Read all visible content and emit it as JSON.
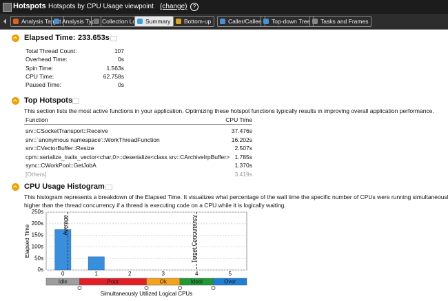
{
  "header": {
    "title": "Hotspots",
    "viewpoint": "Hotspots by CPU Usage viewpoint",
    "change": "(change)",
    "help": "?"
  },
  "toolbar": {
    "tabs": [
      "Analysis Target",
      "Analysis Type",
      "Collection Log",
      "Summary",
      "Bottom-up",
      "Caller/Callee",
      "Top-down Tree",
      "Tasks and Frames"
    ],
    "selected": "Summary"
  },
  "summary": {
    "title": "Elapsed Time:",
    "value": "233.653s",
    "rows": [
      [
        "Total Thread Count:",
        "107"
      ],
      [
        "Overhead Time:",
        "0s"
      ],
      [
        "Spin Time:",
        "1.563s"
      ],
      [
        "CPU Time:",
        "62.758s"
      ],
      [
        "Paused Time:",
        "0s"
      ]
    ]
  },
  "top_hotspots": {
    "title": "Top Hotspots",
    "description": "This section lists the most active functions in your application. Optimizing these hotspot functions typically results in improving overall application performance.",
    "columns": [
      "Function",
      "CPU Time"
    ],
    "rows": [
      [
        "srv::CSocketTransport::Receive",
        "37.476s"
      ],
      [
        "srv::`anonymous namespace'::WorkThreadFunction",
        "16.202s"
      ],
      [
        "srv::CVectorBuffer::Resize",
        "2.507s"
      ],
      [
        "cpm::serialize_traits_vector<char,0>::deserialize<class srv::CArchiveIrpBuffer>",
        "1.785s"
      ],
      [
        "sync::CWorkPool::GetJobA",
        "1.370s"
      ]
    ],
    "others": [
      "[Others]",
      "3.419s"
    ]
  },
  "chart_data": {
    "type": "bar",
    "title": "CPU Usage Histogram",
    "subtitle": [
      "This histogram represents a breakdown of the Elapsed Time. It visualizes what percentage of the wall time the specific number of CPUs were running simultaneously. CPU Usage may be",
      "higher than the thread concurrency if a thread is executing code on a CPU while it is logically waiting."
    ],
    "x": [
      0,
      1,
      2,
      3,
      4,
      5
    ],
    "values": [
      175,
      57,
      0,
      0,
      0,
      0
    ],
    "color": "#3a8ede",
    "xlim": [
      -0.5,
      5.5
    ],
    "ylim": [
      0,
      250
    ],
    "yticks": [
      {
        "value": 0,
        "label": "0s"
      },
      {
        "value": 50,
        "label": "50s"
      },
      {
        "value": 100,
        "label": "100s"
      },
      {
        "value": 150,
        "label": "150s"
      },
      {
        "value": 200,
        "label": "200s"
      },
      {
        "value": 250,
        "label": "250s"
      }
    ],
    "xlabel": "Simultaneously Utilized Logical CPUs",
    "ylabel": "Elapsed Time",
    "grid": true,
    "markers": [
      {
        "value": 0.15,
        "label": "Average"
      },
      {
        "value": 4,
        "label": "Target Concurrency"
      }
    ],
    "bands": [
      {
        "label": "Idle",
        "from": -0.5,
        "to": 0.5,
        "color": "#9e9e9e"
      },
      {
        "label": "Poor",
        "from": 0.5,
        "to": 2.5,
        "color": "#e41e26"
      },
      {
        "label": "Ok",
        "from": 2.5,
        "to": 3.5,
        "color": "#f7a21b"
      },
      {
        "label": "Ideal",
        "from": 3.5,
        "to": 4.5,
        "color": "#1e9a34"
      },
      {
        "label": "Over",
        "from": 4.5,
        "to": 5.5,
        "color": "#1d7fd8"
      }
    ]
  }
}
